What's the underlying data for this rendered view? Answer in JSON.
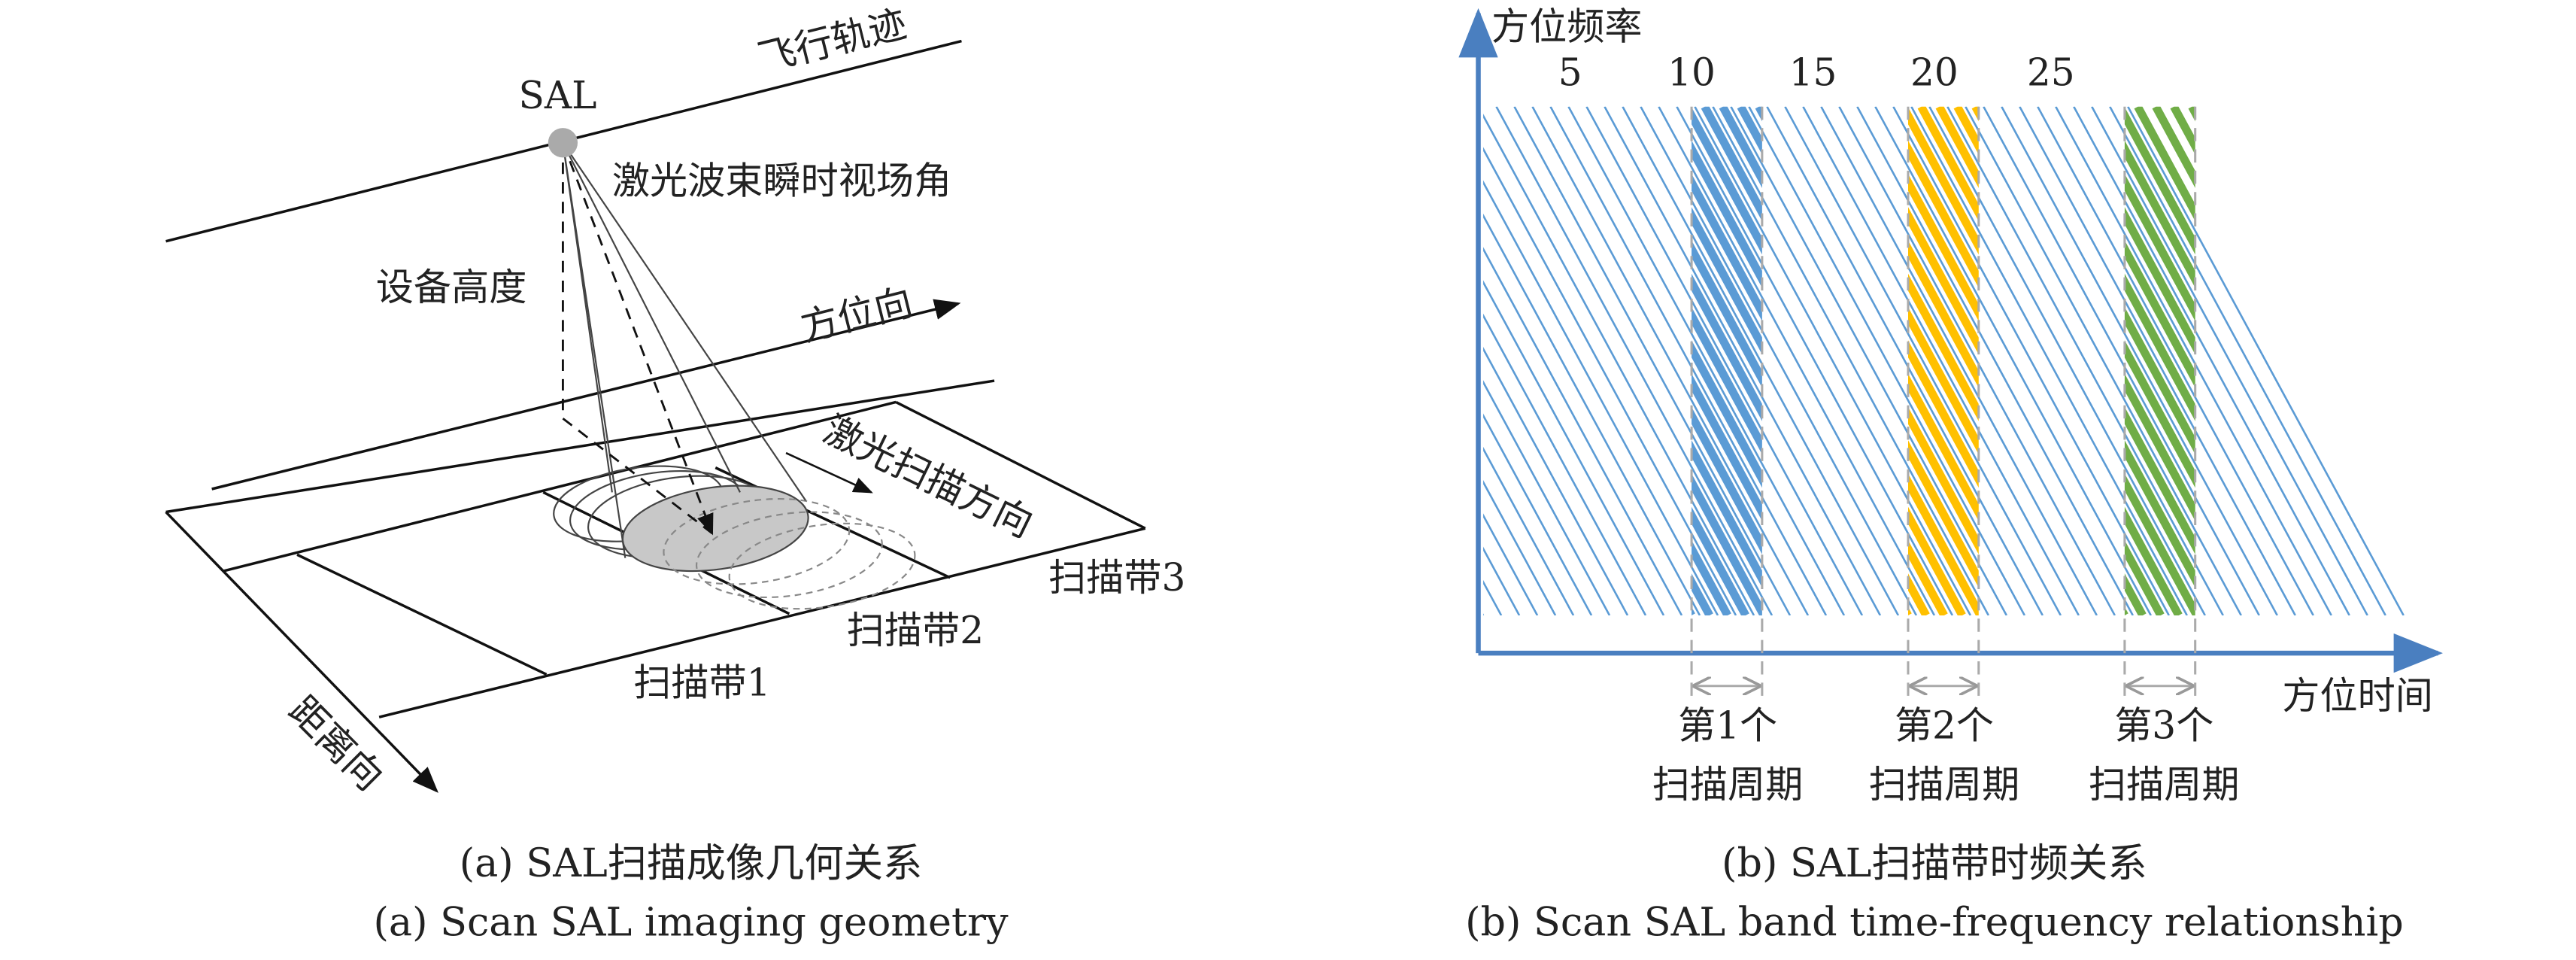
{
  "left": {
    "sal": "SAL",
    "flight_track": "飞行轨迹",
    "beam_angle": "激光波束瞬时视场角",
    "height": "设备高度",
    "azimuth": "方位向",
    "scan_direction": "激光扫描方向",
    "band3": "扫描带3",
    "band2": "扫描带2",
    "band1": "扫描带1",
    "range": "距离向",
    "caption_cn": "(a) SAL扫描成像几何关系",
    "caption_en": "(a) Scan SAL imaging geometry"
  },
  "right": {
    "y_label": "方位频率",
    "x_label": "方位时间",
    "freq_labels": [
      5,
      10,
      15,
      20,
      25
    ],
    "periods": [
      {
        "line1": "第1个",
        "line2": "扫描周期"
      },
      {
        "line1": "第2个",
        "line2": "扫描周期"
      },
      {
        "line1": "第3个",
        "line2": "扫描周期"
      }
    ],
    "caption_cn": "(b) SAL扫描带时频关系",
    "caption_en": "(b) Scan SAL band time-frequency relationship"
  }
}
